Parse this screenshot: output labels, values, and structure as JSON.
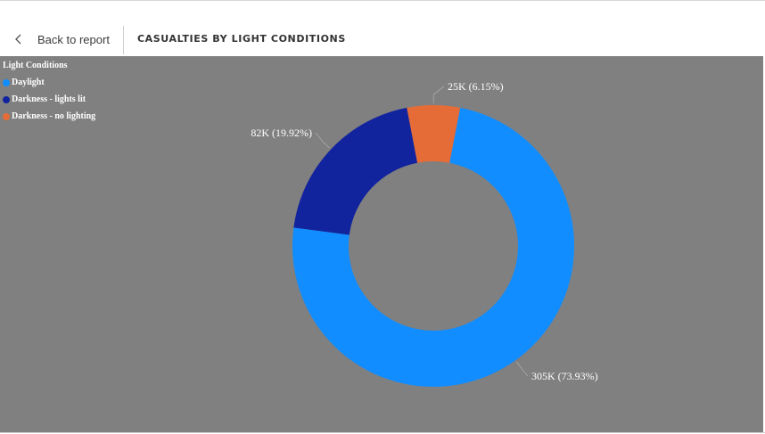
{
  "header": {
    "back_label": "Back to report",
    "title": "CASUALTIES BY LIGHT CONDITIONS"
  },
  "chart_data": {
    "type": "pie",
    "legend_title": "Light Conditions",
    "legend_placement": "top-left",
    "slices": [
      {
        "name": "Daylight",
        "value": 305000,
        "label": "305K (73.93%)",
        "color": "#118DFF"
      },
      {
        "name": "Darkness - lights lit",
        "value": 82000,
        "label": "82K (19.92%)",
        "color": "#12239E"
      },
      {
        "name": "Darkness - no lighting",
        "value": 25000,
        "label": "25K (6.15%)",
        "color": "#E66C37"
      }
    ]
  }
}
